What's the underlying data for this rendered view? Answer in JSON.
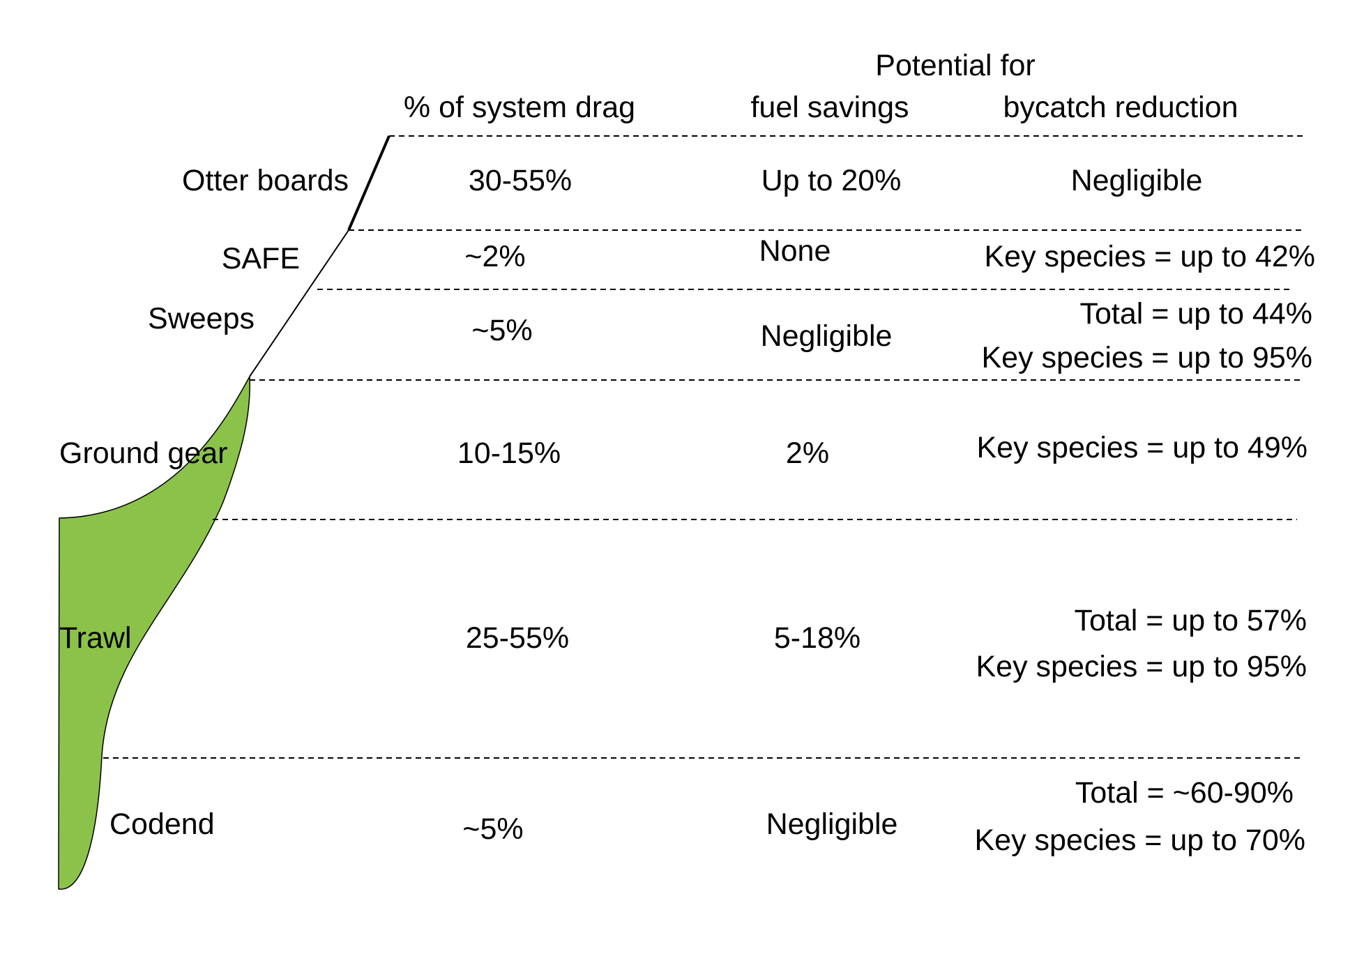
{
  "headers": {
    "potential_for": "Potential for",
    "drag": "% of system drag",
    "fuel": "fuel savings",
    "bycatch": "bycatch reduction"
  },
  "rows": [
    {
      "component": "Otter boards",
      "drag": "30-55%",
      "fuel": "Up to 20%",
      "bycatch": [
        "Negligible"
      ]
    },
    {
      "component": "SAFE",
      "drag": "~2%",
      "fuel": "None",
      "bycatch": [
        "Key species = up to 42%"
      ]
    },
    {
      "component": "Sweeps",
      "drag": "~5%",
      "fuel": "Negligible",
      "bycatch": [
        "Total = up to 44%",
        "Key species = up to 95%"
      ]
    },
    {
      "component": "Ground gear",
      "drag": "10-15%",
      "fuel": "2%",
      "bycatch": [
        "Key species = up to 49%"
      ]
    },
    {
      "component": "Trawl",
      "drag": "25-55%",
      "fuel": "5-18%",
      "bycatch": [
        "Total = up to 57%",
        "Key species = up to 95%"
      ]
    },
    {
      "component": "Codend",
      "drag": "~5%",
      "fuel": "Negligible",
      "bycatch": [
        "Total = ~60-90%",
        "Key species = up to 70%"
      ]
    }
  ],
  "colors": {
    "net_fill": "#8bc34a",
    "line": "#000000",
    "divider": "#000000"
  }
}
